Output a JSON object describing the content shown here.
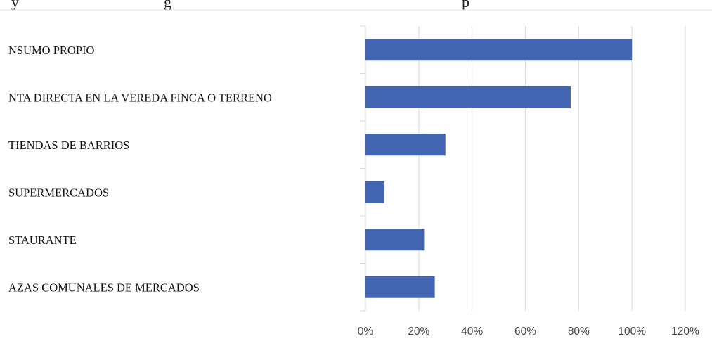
{
  "header": {
    "text_left": "y",
    "text_middle": "g",
    "text_right": "p"
  },
  "chart_data": {
    "type": "bar",
    "orientation": "horizontal",
    "categories": [
      "NSUMO PROPIO",
      "NTA DIRECTA EN LA VEREDA FINCA O TERRENO",
      " TIENDAS DE BARRIOS",
      " SUPERMERCADOS",
      "STAURANTE",
      "AZAS COMUNALES DE MERCADOS"
    ],
    "values": [
      100,
      77,
      30,
      7,
      22,
      26
    ],
    "xlim": [
      0,
      120
    ],
    "xticks": [
      0,
      20,
      40,
      60,
      80,
      100,
      120
    ],
    "tick_labels": [
      "0%",
      "20%",
      "40%",
      "60%",
      "80%",
      "100%",
      "120%"
    ],
    "bar_color": "#4165b0",
    "grid": true,
    "grid_color": "#d9d9d9",
    "legend": "none"
  }
}
